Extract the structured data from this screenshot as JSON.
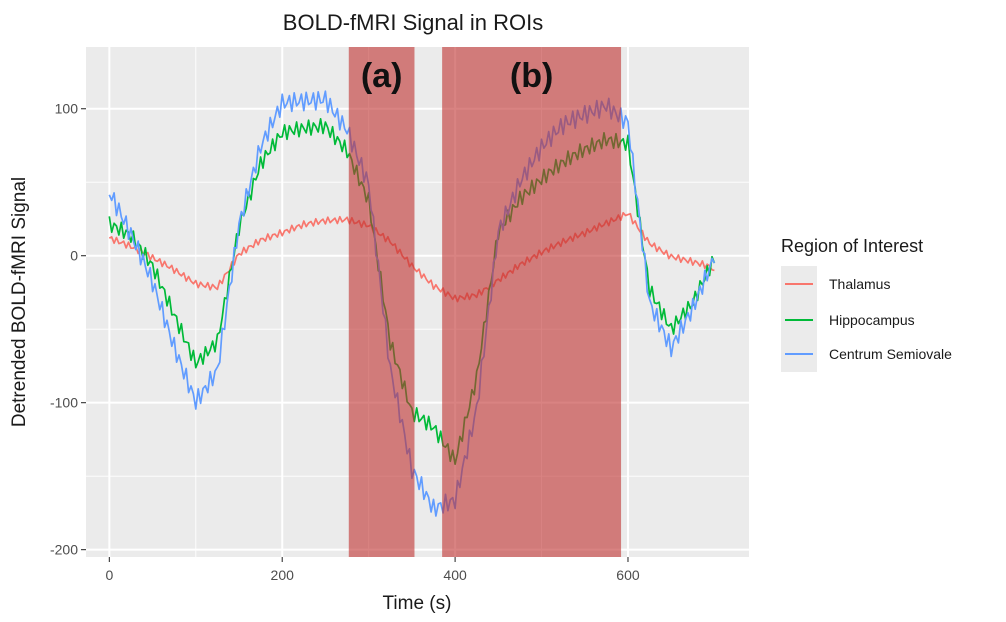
{
  "chart_data": {
    "type": "line",
    "title": "BOLD-fMRI Signal in ROIs",
    "xlabel": "Time (s)",
    "ylabel": "Detrended BOLD-fMRI Signal",
    "xlim": [
      -27,
      740
    ],
    "ylim": [
      -205,
      142
    ],
    "x_ticks": [
      0,
      200,
      400,
      600
    ],
    "y_ticks": [
      -200,
      -100,
      0,
      100
    ],
    "grid": true,
    "legend": {
      "title": "Region of Interest",
      "placement": "right"
    },
    "shaded_regions": [
      {
        "label": "(a)",
        "x_start": 277,
        "x_end": 353,
        "color": "#c0302e"
      },
      {
        "label": "(b)",
        "x_start": 385,
        "x_end": 592,
        "color": "#c0302e"
      }
    ],
    "series": [
      {
        "name": "Thalamus",
        "color": "#F8766D",
        "x": [
          0,
          25,
          50,
          75,
          100,
          125,
          150,
          175,
          200,
          225,
          250,
          275,
          300,
          325,
          350,
          375,
          400,
          425,
          450,
          475,
          500,
          525,
          550,
          575,
          600,
          625,
          650,
          675,
          700
        ],
        "y": [
          12,
          5,
          -3,
          -10,
          -18,
          -20,
          2,
          10,
          14,
          20,
          24,
          26,
          22,
          10,
          -8,
          -22,
          -30,
          -26,
          -15,
          -5,
          2,
          8,
          14,
          22,
          30,
          10,
          0,
          -5,
          -10
        ]
      },
      {
        "name": "Hippocampus",
        "color": "#00BA38",
        "x": [
          0,
          25,
          50,
          75,
          100,
          125,
          150,
          175,
          200,
          225,
          250,
          275,
          300,
          325,
          350,
          375,
          400,
          425,
          450,
          475,
          500,
          525,
          550,
          575,
          600,
          625,
          650,
          675,
          700
        ],
        "y": [
          20,
          10,
          -10,
          -40,
          -70,
          -55,
          20,
          60,
          80,
          85,
          90,
          75,
          40,
          -60,
          -110,
          -120,
          -140,
          -80,
          20,
          40,
          50,
          60,
          70,
          80,
          80,
          -20,
          -50,
          -35,
          -5
        ]
      },
      {
        "name": "Centrum Semiovale",
        "color": "#619CFF",
        "x": [
          0,
          25,
          50,
          75,
          100,
          125,
          150,
          175,
          200,
          225,
          250,
          275,
          300,
          325,
          350,
          375,
          400,
          425,
          450,
          475,
          500,
          525,
          550,
          575,
          600,
          625,
          650,
          675,
          700
        ],
        "y": [
          40,
          10,
          -20,
          -60,
          -95,
          -75,
          20,
          70,
          100,
          105,
          110,
          90,
          50,
          -80,
          -150,
          -175,
          -165,
          -100,
          20,
          50,
          70,
          85,
          95,
          105,
          95,
          -30,
          -65,
          -40,
          -5
        ]
      }
    ]
  }
}
